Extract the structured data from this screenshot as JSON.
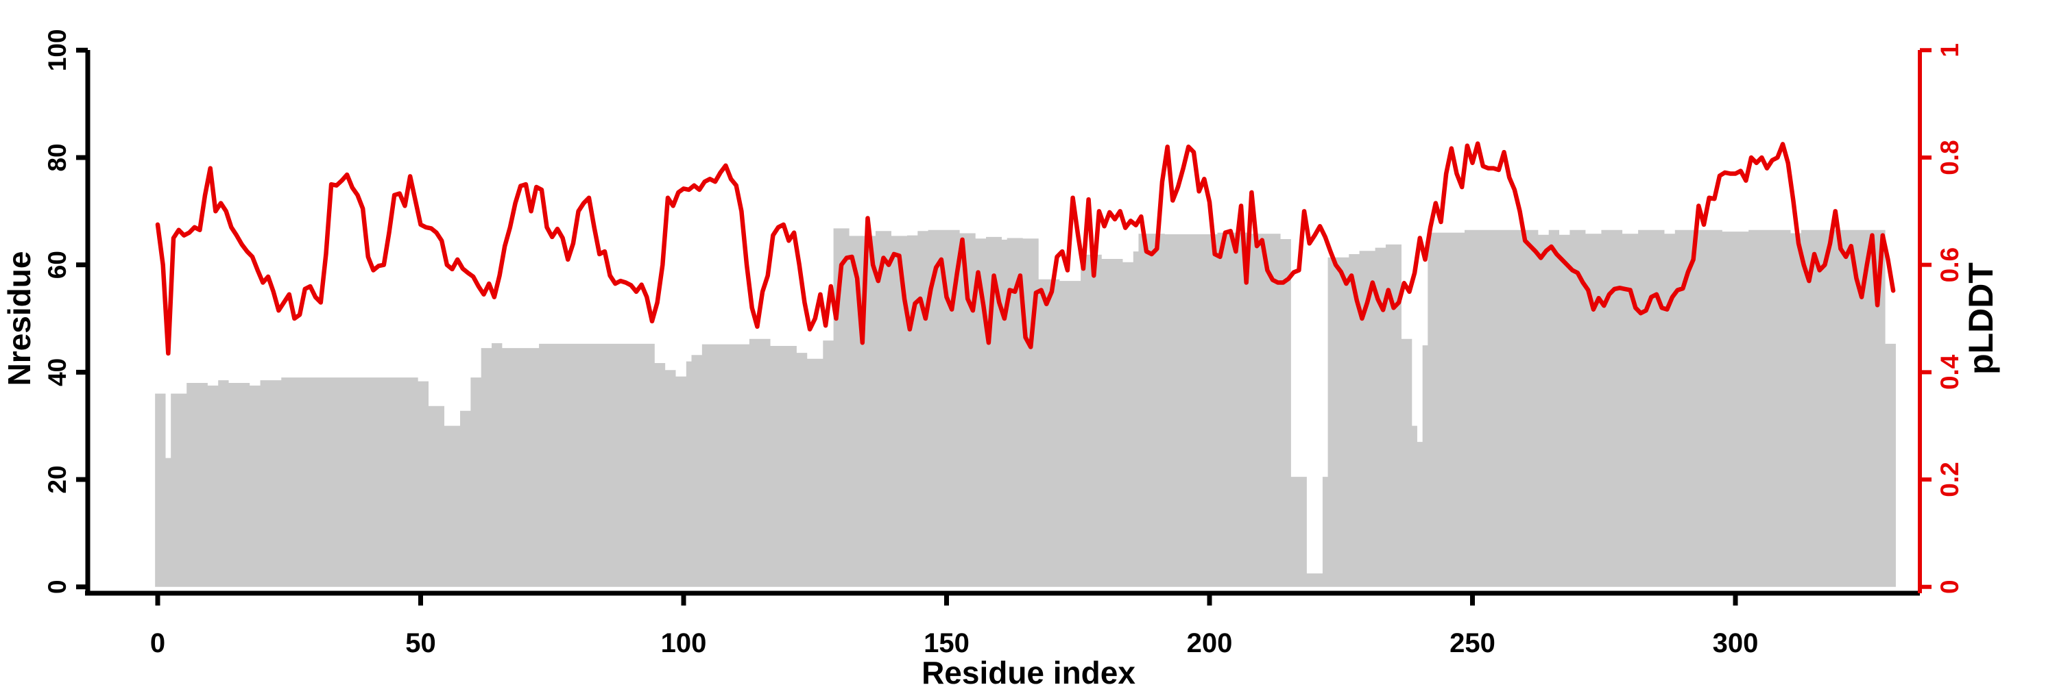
{
  "chart_data": {
    "type": "line",
    "subtype": "area-steps + line, dual y-axis",
    "title": "",
    "xlabel": "Residue index",
    "ylabel_left": "Nresidue",
    "ylabel_right": "pLDDT",
    "x_ticks": [
      0,
      50,
      100,
      150,
      200,
      250,
      300
    ],
    "y_left_ticks": [
      0,
      20,
      40,
      60,
      80,
      100
    ],
    "y_right_ticks": [
      0,
      0.2,
      0.4,
      0.6,
      0.8,
      1
    ],
    "xlim": [
      0,
      335
    ],
    "ylim_left": [
      0,
      100
    ],
    "ylim_right": [
      0,
      1
    ],
    "grid": "off",
    "legend": "none",
    "colors": {
      "area_gray": "#cacaca",
      "line_red": "#e60000",
      "axis_black": "#000000"
    },
    "x_start": 0,
    "x_step": 1,
    "series": [
      {
        "name": "Nresidue",
        "type": "area-steps",
        "axis": "left",
        "color": "#cacaca",
        "values": [
          36,
          36,
          24,
          36,
          36,
          36,
          38,
          38,
          38,
          38,
          37.5,
          37.5,
          38.5,
          38.5,
          38,
          38,
          38,
          38,
          37.5,
          37.5,
          38.5,
          38.5,
          38.5,
          38.5,
          39,
          39,
          39,
          39,
          39,
          39,
          39,
          39,
          39,
          39,
          39,
          39,
          39,
          39,
          39,
          39,
          39,
          39,
          39,
          39,
          39,
          39,
          39,
          39,
          39,
          39,
          38.3,
          38.3,
          33.7,
          33.7,
          33.7,
          30,
          30,
          30,
          32.8,
          32.8,
          39,
          39,
          44.5,
          44.5,
          45.4,
          45.4,
          44.5,
          44.5,
          44.5,
          44.5,
          44.5,
          44.5,
          44.5,
          45.3,
          45.3,
          45.3,
          45.3,
          45.3,
          45.3,
          45.3,
          45.3,
          45.3,
          45.3,
          45.3,
          45.3,
          45.3,
          45.3,
          45.3,
          45.3,
          45.3,
          45.3,
          45.3,
          45.3,
          45.3,
          45.3,
          41.7,
          41.7,
          40.4,
          40.4,
          39.2,
          39.2,
          42,
          43.2,
          43.2,
          45.2,
          45.2,
          45.2,
          45.2,
          45.2,
          45.2,
          45.2,
          45.2,
          45.2,
          46.2,
          46.2,
          46.2,
          46.2,
          44.9,
          44.9,
          44.9,
          44.9,
          44.9,
          43.6,
          43.6,
          42.5,
          42.5,
          42.5,
          45.9,
          45.9,
          66.8,
          66.8,
          66.8,
          65.4,
          65.4,
          65.4,
          65.4,
          65.4,
          66.3,
          66.3,
          66.3,
          65.4,
          65.4,
          65.4,
          65.5,
          65.5,
          66.3,
          66.3,
          66.5,
          66.5,
          66.5,
          66.5,
          66.5,
          66.5,
          65.9,
          65.9,
          65.9,
          64.9,
          64.9,
          65.2,
          65.2,
          65.2,
          64.7,
          65,
          65,
          65,
          64.9,
          64.9,
          64.9,
          57.3,
          57.3,
          57.3,
          57.3,
          57,
          57,
          57,
          57,
          61.9,
          61.9,
          61.9,
          61.9,
          61.1,
          61.1,
          61.1,
          61.1,
          60.5,
          60.5,
          62.5,
          65.8,
          65.8,
          65.8,
          65.8,
          65.8,
          65.7,
          65.7,
          65.7,
          65.7,
          65.7,
          65.7,
          65.7,
          65.7,
          65.7,
          65.7,
          66,
          66,
          66,
          66,
          66,
          66,
          65.8,
          65.8,
          65.8,
          65.8,
          65.8,
          65.8,
          64.8,
          64.8,
          20.5,
          20.5,
          20.5,
          2.5,
          2.5,
          2.5,
          20.5,
          61.4,
          61.4,
          61.4,
          61.4,
          62,
          62,
          62.6,
          62.6,
          62.6,
          63.2,
          63.2,
          63.8,
          63.8,
          63.8,
          46.2,
          46.2,
          30,
          27,
          45,
          66,
          66,
          66,
          66,
          66,
          66,
          66,
          66.5,
          66.5,
          66.5,
          66.5,
          66.5,
          66.5,
          66.5,
          66.5,
          66.5,
          66.5,
          66.5,
          66.5,
          66.5,
          66.5,
          65.6,
          65.6,
          66.5,
          66.5,
          65.6,
          65.6,
          66.5,
          66.5,
          66.5,
          65.8,
          65.8,
          65.8,
          66.5,
          66.5,
          66.5,
          66.5,
          65.8,
          65.8,
          65.8,
          66.5,
          66.5,
          66.5,
          66.5,
          66.5,
          65.8,
          65.8,
          66.5,
          66.5,
          66.5,
          66.5,
          66.5,
          66.5,
          66.5,
          66.5,
          66.5,
          66.2,
          66.2,
          66.2,
          66.2,
          66.2,
          66.5,
          66.5,
          66.5,
          66.5,
          66.5,
          66.5,
          66.5,
          66.5,
          65.9,
          65.9,
          66.5,
          66.5,
          66.5,
          66.5,
          66.5,
          66.5,
          66.5,
          66.5,
          66.5,
          66.5,
          66.5,
          66.5,
          66.5,
          66.5,
          66.5,
          66.5,
          45.3,
          45.3
        ]
      },
      {
        "name": "pLDDT",
        "type": "line",
        "axis": "right",
        "color": "#e60000",
        "values": [
          0.675,
          0.6,
          0.435,
          0.65,
          0.665,
          0.655,
          0.66,
          0.67,
          0.665,
          0.73,
          0.78,
          0.7,
          0.715,
          0.7,
          0.67,
          0.655,
          0.638,
          0.625,
          0.615,
          0.59,
          0.567,
          0.578,
          0.55,
          0.515,
          0.53,
          0.545,
          0.5,
          0.507,
          0.555,
          0.56,
          0.54,
          0.53,
          0.62,
          0.75,
          0.748,
          0.757,
          0.768,
          0.744,
          0.73,
          0.705,
          0.615,
          0.59,
          0.598,
          0.6,
          0.66,
          0.73,
          0.733,
          0.71,
          0.765,
          0.72,
          0.675,
          0.67,
          0.668,
          0.66,
          0.645,
          0.6,
          0.592,
          0.61,
          0.593,
          0.585,
          0.578,
          0.56,
          0.545,
          0.565,
          0.54,
          0.58,
          0.635,
          0.67,
          0.715,
          0.747,
          0.75,
          0.7,
          0.745,
          0.74,
          0.67,
          0.652,
          0.667,
          0.65,
          0.61,
          0.64,
          0.7,
          0.715,
          0.725,
          0.67,
          0.62,
          0.625,
          0.58,
          0.565,
          0.57,
          0.567,
          0.562,
          0.55,
          0.563,
          0.54,
          0.495,
          0.53,
          0.6,
          0.725,
          0.71,
          0.735,
          0.742,
          0.74,
          0.748,
          0.74,
          0.755,
          0.76,
          0.755,
          0.772,
          0.785,
          0.76,
          0.748,
          0.7,
          0.6,
          0.52,
          0.485,
          0.55,
          0.58,
          0.655,
          0.67,
          0.675,
          0.645,
          0.66,
          0.6,
          0.53,
          0.48,
          0.5,
          0.545,
          0.487,
          0.56,
          0.5,
          0.6,
          0.613,
          0.615,
          0.575,
          0.455,
          0.687,
          0.6,
          0.57,
          0.613,
          0.6,
          0.62,
          0.617,
          0.536,
          0.48,
          0.528,
          0.537,
          0.5,
          0.555,
          0.595,
          0.61,
          0.54,
          0.517,
          0.585,
          0.647,
          0.537,
          0.515,
          0.586,
          0.525,
          0.455,
          0.58,
          0.53,
          0.5,
          0.553,
          0.55,
          0.58,
          0.465,
          0.447,
          0.548,
          0.553,
          0.527,
          0.55,
          0.615,
          0.625,
          0.59,
          0.725,
          0.655,
          0.593,
          0.722,
          0.58,
          0.7,
          0.672,
          0.698,
          0.685,
          0.7,
          0.669,
          0.682,
          0.674,
          0.69,
          0.625,
          0.62,
          0.63,
          0.755,
          0.82,
          0.72,
          0.745,
          0.78,
          0.82,
          0.81,
          0.737,
          0.76,
          0.717,
          0.62,
          0.615,
          0.66,
          0.663,
          0.625,
          0.71,
          0.567,
          0.735,
          0.635,
          0.646,
          0.59,
          0.572,
          0.567,
          0.567,
          0.574,
          0.586,
          0.59,
          0.7,
          0.64,
          0.655,
          0.672,
          0.652,
          0.625,
          0.6,
          0.587,
          0.565,
          0.58,
          0.534,
          0.5,
          0.53,
          0.567,
          0.536,
          0.516,
          0.553,
          0.52,
          0.53,
          0.566,
          0.55,
          0.585,
          0.65,
          0.61,
          0.67,
          0.715,
          0.68,
          0.77,
          0.817,
          0.77,
          0.745,
          0.822,
          0.79,
          0.826,
          0.784,
          0.78,
          0.78,
          0.777,
          0.81,
          0.763,
          0.74,
          0.7,
          0.645,
          0.635,
          0.625,
          0.613,
          0.626,
          0.634,
          0.62,
          0.61,
          0.6,
          0.59,
          0.585,
          0.567,
          0.553,
          0.517,
          0.538,
          0.524,
          0.545,
          0.555,
          0.557,
          0.555,
          0.553,
          0.52,
          0.51,
          0.515,
          0.54,
          0.545,
          0.52,
          0.517,
          0.54,
          0.553,
          0.556,
          0.587,
          0.61,
          0.71,
          0.675,
          0.725,
          0.723,
          0.766,
          0.772,
          0.77,
          0.77,
          0.775,
          0.757,
          0.8,
          0.79,
          0.8,
          0.78,
          0.795,
          0.8,
          0.825,
          0.79,
          0.72,
          0.64,
          0.6,
          0.57,
          0.62,
          0.59,
          0.6,
          0.64,
          0.7,
          0.63,
          0.615,
          0.635,
          0.575,
          0.54,
          0.6,
          0.655,
          0.525,
          0.655,
          0.61,
          0.552
        ]
      }
    ]
  }
}
